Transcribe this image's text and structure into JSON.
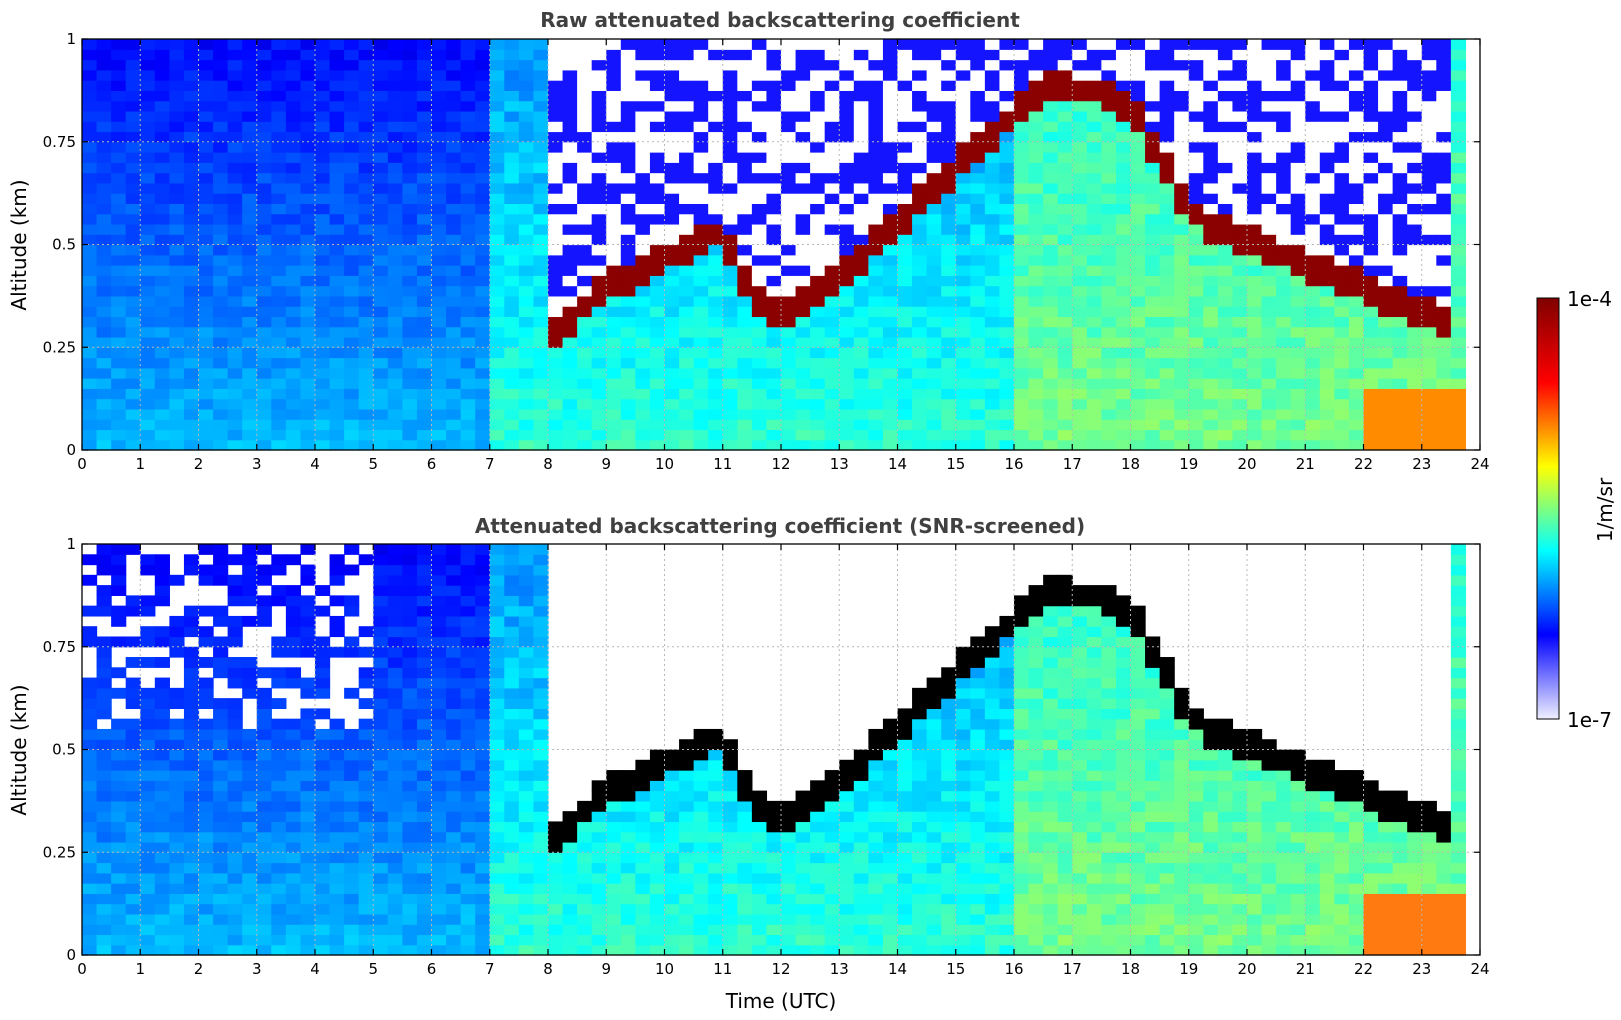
{
  "chart_data": [
    {
      "type": "heatmap",
      "id": "raw",
      "title": "Raw attenuated backscattering coefficient",
      "xlabel": "",
      "ylabel": "Altitude (km)",
      "xlim": [
        0,
        24
      ],
      "ylim": [
        0,
        1
      ],
      "xticks": [
        "0",
        "1",
        "2",
        "3",
        "4",
        "5",
        "6",
        "7",
        "8",
        "9",
        "10",
        "11",
        "12",
        "13",
        "14",
        "15",
        "16",
        "17",
        "18",
        "19",
        "20",
        "21",
        "22",
        "23",
        "24"
      ],
      "yticks": [
        "0",
        "0.25",
        "0.5",
        "0.75",
        "1"
      ],
      "grid": true,
      "screened": false,
      "cloud_layer": {
        "time_utc": [
          8.0,
          8.5,
          9.0,
          11.0,
          11.5,
          12.0,
          13.0,
          14.0,
          16.5,
          17.0,
          17.5,
          18.0,
          18.5,
          19.0,
          19.5,
          20.0,
          21.0,
          22.0,
          23.0,
          23.6
        ],
        "base_km": [
          0.24,
          0.3,
          0.36,
          0.5,
          0.35,
          0.3,
          0.38,
          0.52,
          0.85,
          0.84,
          0.84,
          0.8,
          0.68,
          0.55,
          0.5,
          0.48,
          0.42,
          0.36,
          0.3,
          0.28
        ]
      }
    },
    {
      "type": "heatmap",
      "id": "screened",
      "title": "Attenuated backscattering coefficient (SNR-screened)",
      "xlabel": "Time (UTC)",
      "ylabel": "Altitude (km)",
      "xlim": [
        0,
        24
      ],
      "ylim": [
        0,
        1
      ],
      "xticks": [
        "0",
        "1",
        "2",
        "3",
        "4",
        "5",
        "6",
        "7",
        "8",
        "9",
        "10",
        "11",
        "12",
        "13",
        "14",
        "15",
        "16",
        "17",
        "18",
        "19",
        "20",
        "21",
        "22",
        "23",
        "24"
      ],
      "yticks": [
        "0",
        "0.25",
        "0.5",
        "0.75",
        "1"
      ],
      "grid": true,
      "screened": true,
      "cloud_layer": {
        "time_utc": [
          8.0,
          8.5,
          9.0,
          11.0,
          11.5,
          12.0,
          13.0,
          14.0,
          16.5,
          17.0,
          17.5,
          18.0,
          18.5,
          19.0,
          19.5,
          20.0,
          21.0,
          22.0,
          23.0,
          23.6
        ],
        "base_km": [
          0.24,
          0.3,
          0.36,
          0.5,
          0.35,
          0.3,
          0.38,
          0.52,
          0.85,
          0.84,
          0.84,
          0.8,
          0.68,
          0.55,
          0.5,
          0.48,
          0.42,
          0.36,
          0.3,
          0.28
        ]
      }
    }
  ],
  "colorbar": {
    "min_label": "1e-7",
    "max_label": "1e-4",
    "unit_label": "1/m/sr",
    "colormap": "jet",
    "scale": "log",
    "range": [
      1e-07,
      0.0001
    ],
    "colors": [
      "#f0f0ff",
      "#0000ff",
      "#00ffff",
      "#ffff00",
      "#ff0000",
      "#800000"
    ]
  }
}
